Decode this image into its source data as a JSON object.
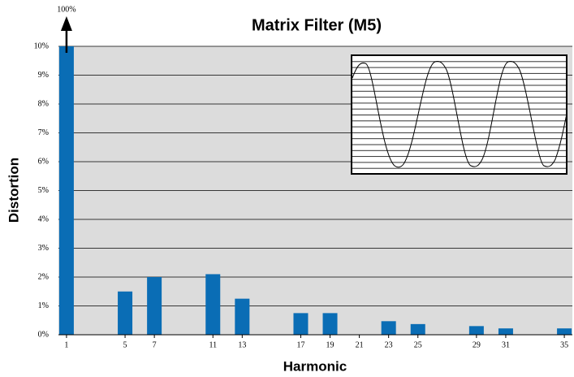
{
  "chart_data": {
    "type": "bar",
    "title": "Matrix Filter (M5)",
    "x_label": "Harmonic",
    "y_label": "Distortion",
    "x": [
      1,
      5,
      7,
      11,
      13,
      17,
      19,
      21,
      23,
      25,
      29,
      31,
      35
    ],
    "values": [
      100,
      1.5,
      2.0,
      2.1,
      1.25,
      0.75,
      0.75,
      0,
      0.47,
      0.37,
      0.3,
      0.22,
      0.22
    ],
    "value_labels": [
      "100%",
      null,
      null,
      null,
      null,
      null,
      null,
      null,
      null,
      null,
      null,
      null,
      null
    ],
    "color": "#0a6db5",
    "xlim": [
      0.45,
      35.55
    ],
    "xticks": [
      1,
      5,
      7,
      11,
      13,
      17,
      19,
      21,
      23,
      25,
      29,
      31,
      35
    ],
    "ylim": [
      0,
      10
    ],
    "yticks": [
      {
        "value": 0,
        "label": "0%"
      },
      {
        "value": 1,
        "label": "1%"
      },
      {
        "value": 2,
        "label": "2%"
      },
      {
        "value": 3,
        "label": "3%"
      },
      {
        "value": 4,
        "label": "4%"
      },
      {
        "value": 5,
        "label": "5%"
      },
      {
        "value": 6,
        "label": "6%"
      },
      {
        "value": 7,
        "label": "7%"
      },
      {
        "value": 8,
        "label": "8%"
      },
      {
        "value": 9,
        "label": "9%"
      },
      {
        "value": 10,
        "label": "10%"
      }
    ],
    "grid": true
  }
}
